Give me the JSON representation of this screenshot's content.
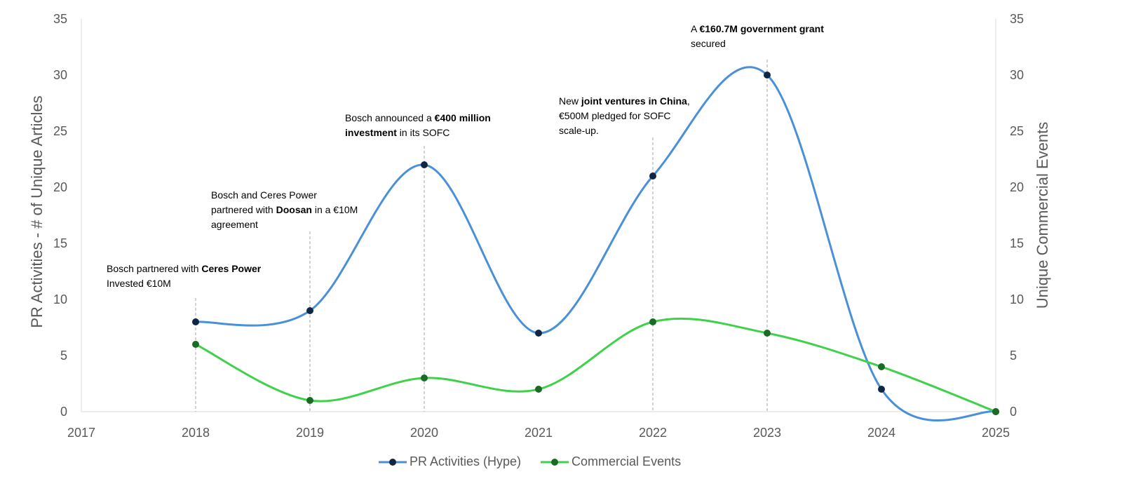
{
  "chart_data": {
    "type": "line",
    "x": [
      2018,
      2019,
      2020,
      2021,
      2022,
      2023,
      2024,
      2025
    ],
    "xlim": [
      2017,
      2025
    ],
    "x_ticks": [
      "2017",
      "2018",
      "2019",
      "2020",
      "2021",
      "2022",
      "2023",
      "2024",
      "2025"
    ],
    "y_ticks": [
      "0",
      "5",
      "10",
      "15",
      "20",
      "25",
      "30",
      "35"
    ],
    "ylim": [
      0,
      35
    ],
    "y2lim": [
      0,
      35
    ],
    "ylabel": "PR Activities - # of Unique Articles",
    "y2label": "Unique Commercial Events",
    "smooth": true,
    "grid": false,
    "legend_position": "bottom",
    "series": [
      {
        "name": "PR Activities (Hype)",
        "axis": "left",
        "color": "#4a90d9",
        "marker_color": "#0f2744",
        "values": [
          8,
          9,
          22,
          7,
          21,
          30,
          2,
          0
        ]
      },
      {
        "name": "Commercial Events",
        "axis": "right",
        "color": "#3fd14a",
        "marker_color": "#1a6b25",
        "values": [
          6,
          1,
          3,
          2,
          8,
          7,
          4,
          0
        ]
      }
    ],
    "annotations": [
      {
        "year": 2018,
        "lines": [
          [
            {
              "t": "Bosch partnered with "
            },
            {
              "t": "Ceres Power",
              "b": true
            }
          ],
          [
            {
              "t": "Invested €10M"
            }
          ]
        ]
      },
      {
        "year": 2019,
        "lines": [
          [
            {
              "t": "Bosch and Ceres Power"
            }
          ],
          [
            {
              "t": "partnered with "
            },
            {
              "t": "Doosan",
              "b": true
            },
            {
              "t": " in a €10M"
            }
          ],
          [
            {
              "t": "agreement"
            }
          ]
        ]
      },
      {
        "year": 2020,
        "lines": [
          [
            {
              "t": "Bosch announced a "
            },
            {
              "t": "€400 million",
              "b": true
            }
          ],
          [
            {
              "t": "investment",
              "b": true
            },
            {
              "t": " in its SOFC"
            }
          ]
        ]
      },
      {
        "year": 2022,
        "lines": [
          [
            {
              "t": "New "
            },
            {
              "t": "joint ventures in China",
              "b": true
            },
            {
              "t": ","
            }
          ],
          [
            {
              "t": "€500M pledged for SOFC"
            }
          ],
          [
            {
              "t": "scale-up."
            }
          ]
        ]
      },
      {
        "year": 2023,
        "lines": [
          [
            {
              "t": "A "
            },
            {
              "t": "€160.7M government grant",
              "b": true
            }
          ],
          [
            {
              "t": "secured"
            }
          ]
        ]
      }
    ]
  }
}
